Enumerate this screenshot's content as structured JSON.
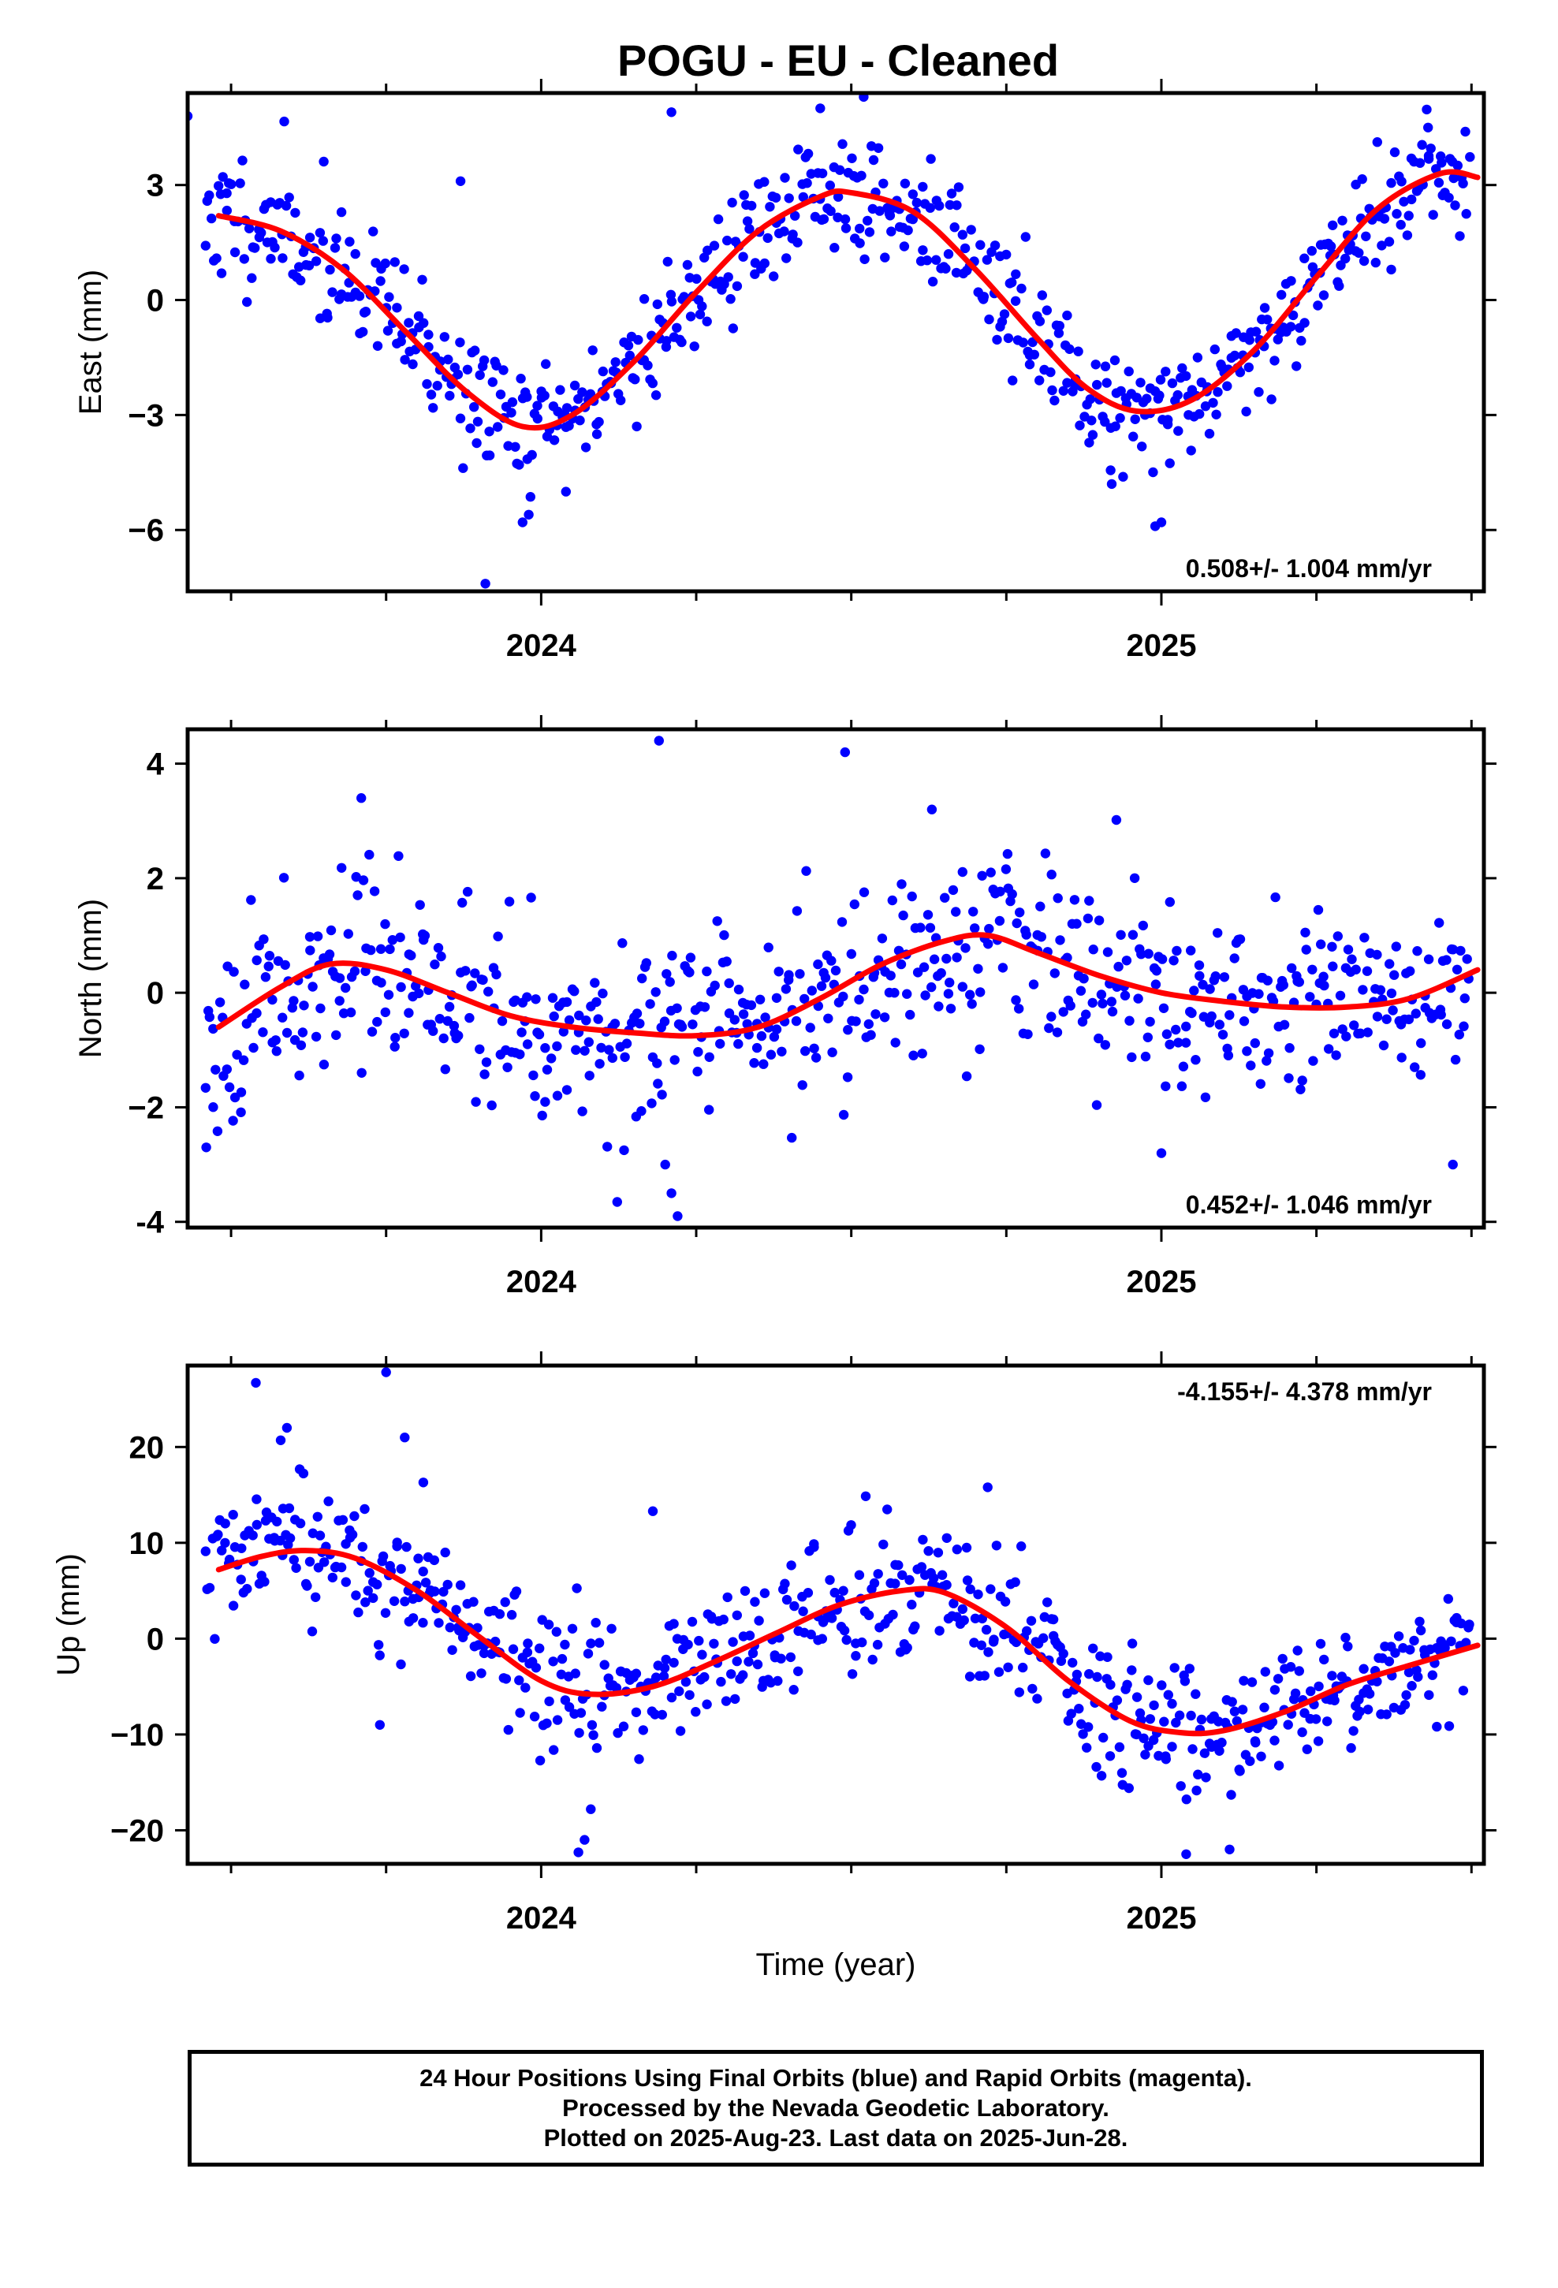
{
  "title": "POGU  - EU - Cleaned",
  "xlabel": "Time (year)",
  "footer": {
    "line1": "24 Hour Positions Using Final Orbits (blue) and Rapid Orbits (magenta).",
    "line2": "Processed by the Nevada Geodetic Laboratory.",
    "line3": "Plotted on 2025-Aug-23. Last data on 2025-Jun-28."
  },
  "colors": {
    "points": "#0000ff",
    "fit": "#ff0000",
    "axes": "#000000"
  },
  "chart_data": [
    {
      "type": "scatter",
      "ylabel": "East (mm)",
      "rate_label": "0.508+/- 1.004 mm/yr",
      "rate_position": "bottom-right",
      "xlim": [
        2023.43,
        2025.52
      ],
      "ylim": [
        -7.6,
        5.4
      ],
      "x_ticks": [
        2024,
        2025
      ],
      "y_ticks": [
        -6,
        -3,
        0,
        3
      ],
      "y_tick_labels": [
        "−6",
        "−3",
        "0",
        "3"
      ],
      "seed": 11,
      "fit": [
        [
          2023.48,
          2.2
        ],
        [
          2023.58,
          1.8
        ],
        [
          2023.68,
          0.8
        ],
        [
          2023.78,
          -0.8
        ],
        [
          2023.88,
          -2.4
        ],
        [
          2023.97,
          -3.3
        ],
        [
          2024.05,
          -3.0
        ],
        [
          2024.15,
          -1.6
        ],
        [
          2024.25,
          0.2
        ],
        [
          2024.35,
          1.8
        ],
        [
          2024.45,
          2.7
        ],
        [
          2024.5,
          2.8
        ],
        [
          2024.6,
          2.3
        ],
        [
          2024.7,
          0.8
        ],
        [
          2024.8,
          -1.0
        ],
        [
          2024.88,
          -2.3
        ],
        [
          2024.96,
          -2.9
        ],
        [
          2025.05,
          -2.6
        ],
        [
          2025.15,
          -1.3
        ],
        [
          2025.25,
          0.6
        ],
        [
          2025.35,
          2.4
        ],
        [
          2025.45,
          3.3
        ],
        [
          2025.51,
          3.2
        ]
      ],
      "scatter_sd": 1.0,
      "outliers": [
        [
          2023.43,
          4.8
        ],
        [
          2023.87,
          3.1
        ],
        [
          2024.21,
          4.9
        ],
        [
          2024.45,
          5.0
        ],
        [
          2024.52,
          5.3
        ],
        [
          2023.91,
          -7.4
        ],
        [
          2023.97,
          -5.8
        ],
        [
          2023.98,
          -5.6
        ],
        [
          2024.04,
          -5.0
        ],
        [
          2024.92,
          -4.8
        ],
        [
          2024.99,
          -5.9
        ],
        [
          2025.0,
          -5.8
        ],
        [
          2024.76,
          -2.1
        ],
        [
          2025.43,
          4.5
        ]
      ]
    },
    {
      "type": "scatter",
      "ylabel": "North (mm)",
      "rate_label": "0.452+/- 1.046 mm/yr",
      "rate_position": "bottom-right",
      "xlim": [
        2023.43,
        2025.52
      ],
      "ylim": [
        -4.1,
        4.6
      ],
      "x_ticks": [
        2024,
        2025
      ],
      "y_ticks": [
        -4,
        -2,
        0,
        2,
        4
      ],
      "y_tick_labels": [
        "-4",
        "−2",
        "0",
        "2",
        "4"
      ],
      "seed": 23,
      "fit": [
        [
          2023.48,
          -0.6
        ],
        [
          2023.58,
          0.1
        ],
        [
          2023.66,
          0.5
        ],
        [
          2023.75,
          0.4
        ],
        [
          2023.85,
          0.0
        ],
        [
          2023.95,
          -0.4
        ],
        [
          2024.05,
          -0.6
        ],
        [
          2024.15,
          -0.7
        ],
        [
          2024.25,
          -0.75
        ],
        [
          2024.35,
          -0.6
        ],
        [
          2024.45,
          -0.1
        ],
        [
          2024.55,
          0.5
        ],
        [
          2024.65,
          0.9
        ],
        [
          2024.72,
          1.0
        ],
        [
          2024.8,
          0.7
        ],
        [
          2024.9,
          0.3
        ],
        [
          2025.0,
          0.0
        ],
        [
          2025.1,
          -0.15
        ],
        [
          2025.2,
          -0.25
        ],
        [
          2025.3,
          -0.25
        ],
        [
          2025.4,
          -0.1
        ],
        [
          2025.51,
          0.4
        ]
      ],
      "scatter_sd": 1.0,
      "outliers": [
        [
          2024.19,
          4.4
        ],
        [
          2024.49,
          4.2
        ],
        [
          2023.71,
          3.4
        ],
        [
          2024.63,
          3.2
        ],
        [
          2024.2,
          -3.0
        ],
        [
          2024.21,
          -3.5
        ],
        [
          2024.22,
          -3.9
        ],
        [
          2023.46,
          -2.7
        ],
        [
          2025.47,
          -3.0
        ],
        [
          2025.0,
          -2.8
        ]
      ]
    },
    {
      "type": "scatter",
      "ylabel": "Up (mm)",
      "rate_label": "-4.155+/- 4.378 mm/yr",
      "rate_position": "top-right",
      "xlim": [
        2023.43,
        2025.52
      ],
      "ylim": [
        -23.5,
        28.5
      ],
      "x_ticks": [
        2024,
        2025
      ],
      "y_ticks": [
        -20,
        -10,
        0,
        10,
        20
      ],
      "y_tick_labels": [
        "−20",
        "−10",
        "0",
        "10",
        "20"
      ],
      "seed": 37,
      "fit": [
        [
          2023.48,
          7.2
        ],
        [
          2023.55,
          8.6
        ],
        [
          2023.62,
          9.2
        ],
        [
          2023.7,
          8.4
        ],
        [
          2023.8,
          5.0
        ],
        [
          2023.9,
          0.2
        ],
        [
          2024.0,
          -4.4
        ],
        [
          2024.08,
          -5.8
        ],
        [
          2024.18,
          -5.0
        ],
        [
          2024.28,
          -2.4
        ],
        [
          2024.38,
          0.6
        ],
        [
          2024.48,
          3.5
        ],
        [
          2024.58,
          5.0
        ],
        [
          2024.65,
          4.8
        ],
        [
          2024.75,
          1.2
        ],
        [
          2024.85,
          -4.4
        ],
        [
          2024.95,
          -8.6
        ],
        [
          2025.03,
          -9.8
        ],
        [
          2025.1,
          -9.6
        ],
        [
          2025.2,
          -7.6
        ],
        [
          2025.3,
          -4.8
        ],
        [
          2025.4,
          -2.8
        ],
        [
          2025.51,
          -0.7
        ]
      ],
      "scatter_sd": 4.3,
      "outliers": [
        [
          2023.54,
          26.7
        ],
        [
          2023.75,
          27.8
        ],
        [
          2023.59,
          22.0
        ],
        [
          2023.58,
          20.7
        ],
        [
          2023.78,
          21.0
        ],
        [
          2023.81,
          16.3
        ],
        [
          2024.18,
          13.3
        ],
        [
          2024.72,
          15.8
        ],
        [
          2024.06,
          -22.3
        ],
        [
          2024.07,
          -21.0
        ],
        [
          2025.04,
          -22.5
        ],
        [
          2025.11,
          -22.0
        ],
        [
          2024.08,
          -17.8
        ],
        [
          2023.74,
          -9.0
        ],
        [
          2024.96,
          -10.0
        ]
      ]
    }
  ]
}
